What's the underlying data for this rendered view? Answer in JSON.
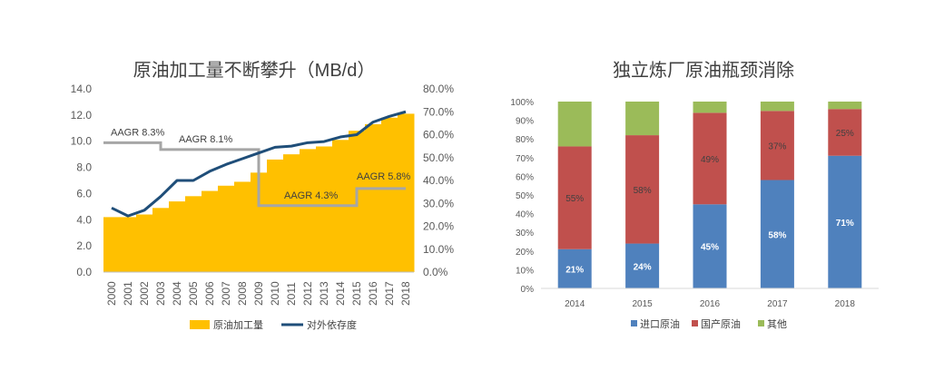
{
  "chart_data": [
    {
      "type": "area+line",
      "title": "原油加工量不断攀升（MB/d）",
      "x": [
        "2000",
        "2001",
        "2002",
        "2003",
        "2004",
        "2005",
        "2006",
        "2007",
        "2008",
        "2009",
        "2010",
        "2011",
        "2012",
        "2013",
        "2014",
        "2015",
        "2016",
        "2017",
        "2018"
      ],
      "ylim": [
        0,
        14
      ],
      "y_ticks": [
        "0.0",
        "2.0",
        "4.0",
        "6.0",
        "8.0",
        "10.0",
        "12.0",
        "14.0"
      ],
      "y2lim": [
        0,
        80
      ],
      "y2_ticks": [
        "0.0%",
        "10.0%",
        "20.0%",
        "30.0%",
        "40.0%",
        "50.0%",
        "60.0%",
        "70.0%",
        "80.0%"
      ],
      "series": [
        {
          "name": "原油加工量",
          "type": "step-area",
          "axis": "left",
          "color": "#FFC000",
          "values": [
            4.2,
            4.2,
            4.4,
            4.9,
            5.4,
            5.8,
            6.2,
            6.6,
            6.9,
            7.6,
            8.6,
            9.0,
            9.4,
            9.6,
            10.1,
            10.8,
            11.3,
            11.8,
            12.1
          ]
        },
        {
          "name": "对外依存度",
          "type": "line",
          "axis": "right",
          "color": "#1F4E79",
          "values": [
            28,
            24.5,
            27,
            33,
            40,
            40,
            44,
            47,
            49.5,
            52,
            54.5,
            55,
            56.5,
            57,
            59,
            60,
            65.5,
            68,
            70
          ]
        }
      ],
      "annotations": [
        {
          "text": "AAGR 8.3%",
          "x_range": [
            "2000",
            "2003.5"
          ],
          "y2": 56.5
        },
        {
          "text": "AAGR 8.1%",
          "x_range": [
            "2003.5",
            "2009.5"
          ],
          "y2": 53.5
        },
        {
          "text": "AAGR 4.3%",
          "x_range": [
            "2009.5",
            "2015.5"
          ],
          "y2": 29
        },
        {
          "text": "AAGR 5.8%",
          "x_range": [
            "2015.5",
            "2018.5"
          ],
          "y2": 36.5
        }
      ],
      "legend": "bottom"
    },
    {
      "type": "stacked-bar",
      "title": "独立炼厂原油瓶颈消除",
      "categories": [
        "2014",
        "2015",
        "2016",
        "2017",
        "2018"
      ],
      "ylim": [
        0,
        100
      ],
      "y_ticks": [
        "0%",
        "10%",
        "20%",
        "30%",
        "40%",
        "50%",
        "60%",
        "70%",
        "80%",
        "90%",
        "100%"
      ],
      "series": [
        {
          "name": "进口原油",
          "color": "#4F81BD",
          "values": [
            21,
            24,
            45,
            58,
            71
          ],
          "labels": [
            "21%",
            "24%",
            "45%",
            "58%",
            "71%"
          ],
          "label_color": "#FFFFFF"
        },
        {
          "name": "国产原油",
          "color": "#C0504D",
          "values": [
            55,
            58,
            49,
            37,
            25
          ],
          "labels": [
            "55%",
            "58%",
            "49%",
            "37%",
            "25%"
          ],
          "label_color": "#404040"
        },
        {
          "name": "其他",
          "color": "#9BBB59",
          "values": [
            24,
            18,
            6,
            5,
            4
          ]
        }
      ],
      "legend": "bottom"
    }
  ]
}
